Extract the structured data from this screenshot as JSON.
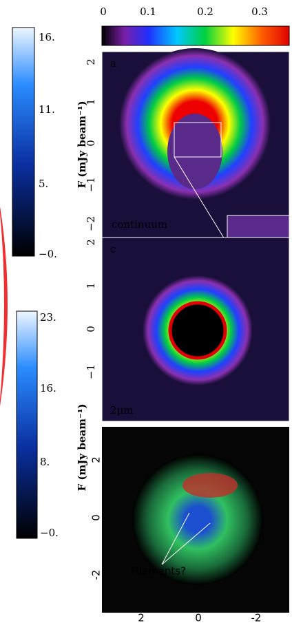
{
  "top_colorbar": {
    "ticks": [
      "0",
      "0.1",
      "0.2",
      "0.3"
    ]
  },
  "left_colorbars": [
    {
      "label": "F (mJy beam⁻¹)",
      "ticks": [
        "16.",
        "11.",
        "5.",
        "−0."
      ]
    },
    {
      "label": "F (mJy beam⁻¹)",
      "ticks": [
        "23.",
        "16.",
        "8.",
        "−0."
      ]
    }
  ],
  "panels": [
    {
      "letter": "a",
      "label": "continuum",
      "yticks": [
        "2",
        "1",
        "0",
        "−1",
        "−2"
      ]
    },
    {
      "letter": "c",
      "label": "2μm",
      "yticks": [
        "2",
        "1",
        "0",
        "−1"
      ]
    },
    {
      "annotation": "Filaments?",
      "yticks": [
        "2",
        "0",
        "-2"
      ],
      "xticks": [
        "2",
        "0",
        "-2"
      ]
    }
  ]
}
